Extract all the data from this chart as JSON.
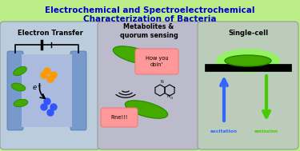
{
  "title_line1": "Electrochemical and Spectroelectrochemical",
  "title_line2": "Characterization of Bacteria",
  "title_color": "#0000CC",
  "title_fontsize": 7.5,
  "bg_color": "#BBEE88",
  "panel1_title": "Electron Transfer",
  "panel2_title": "Metabolites &\nquorum sensing",
  "panel3_title": "Single-cell",
  "panel_title_fontsize": 6.0,
  "bacteria_green": "#44AA00",
  "bacteria_dark": "#228800",
  "orange": "#FF9900",
  "blue_dot": "#3355FF",
  "pink_bg": "#FF9999",
  "arrow_blue": "#3366FF",
  "arrow_green": "#44CC00",
  "emission_color": "#44CC00",
  "excitation_color": "#3366FF",
  "electrode_color": "#7799CC",
  "electrode_edge": "#4477AA",
  "solution_color": "#AABBDD",
  "panel1_bg": "#BBCCDD",
  "panel2_bg": "#BBBBCC",
  "panel3_bg": "#BBCCBB"
}
